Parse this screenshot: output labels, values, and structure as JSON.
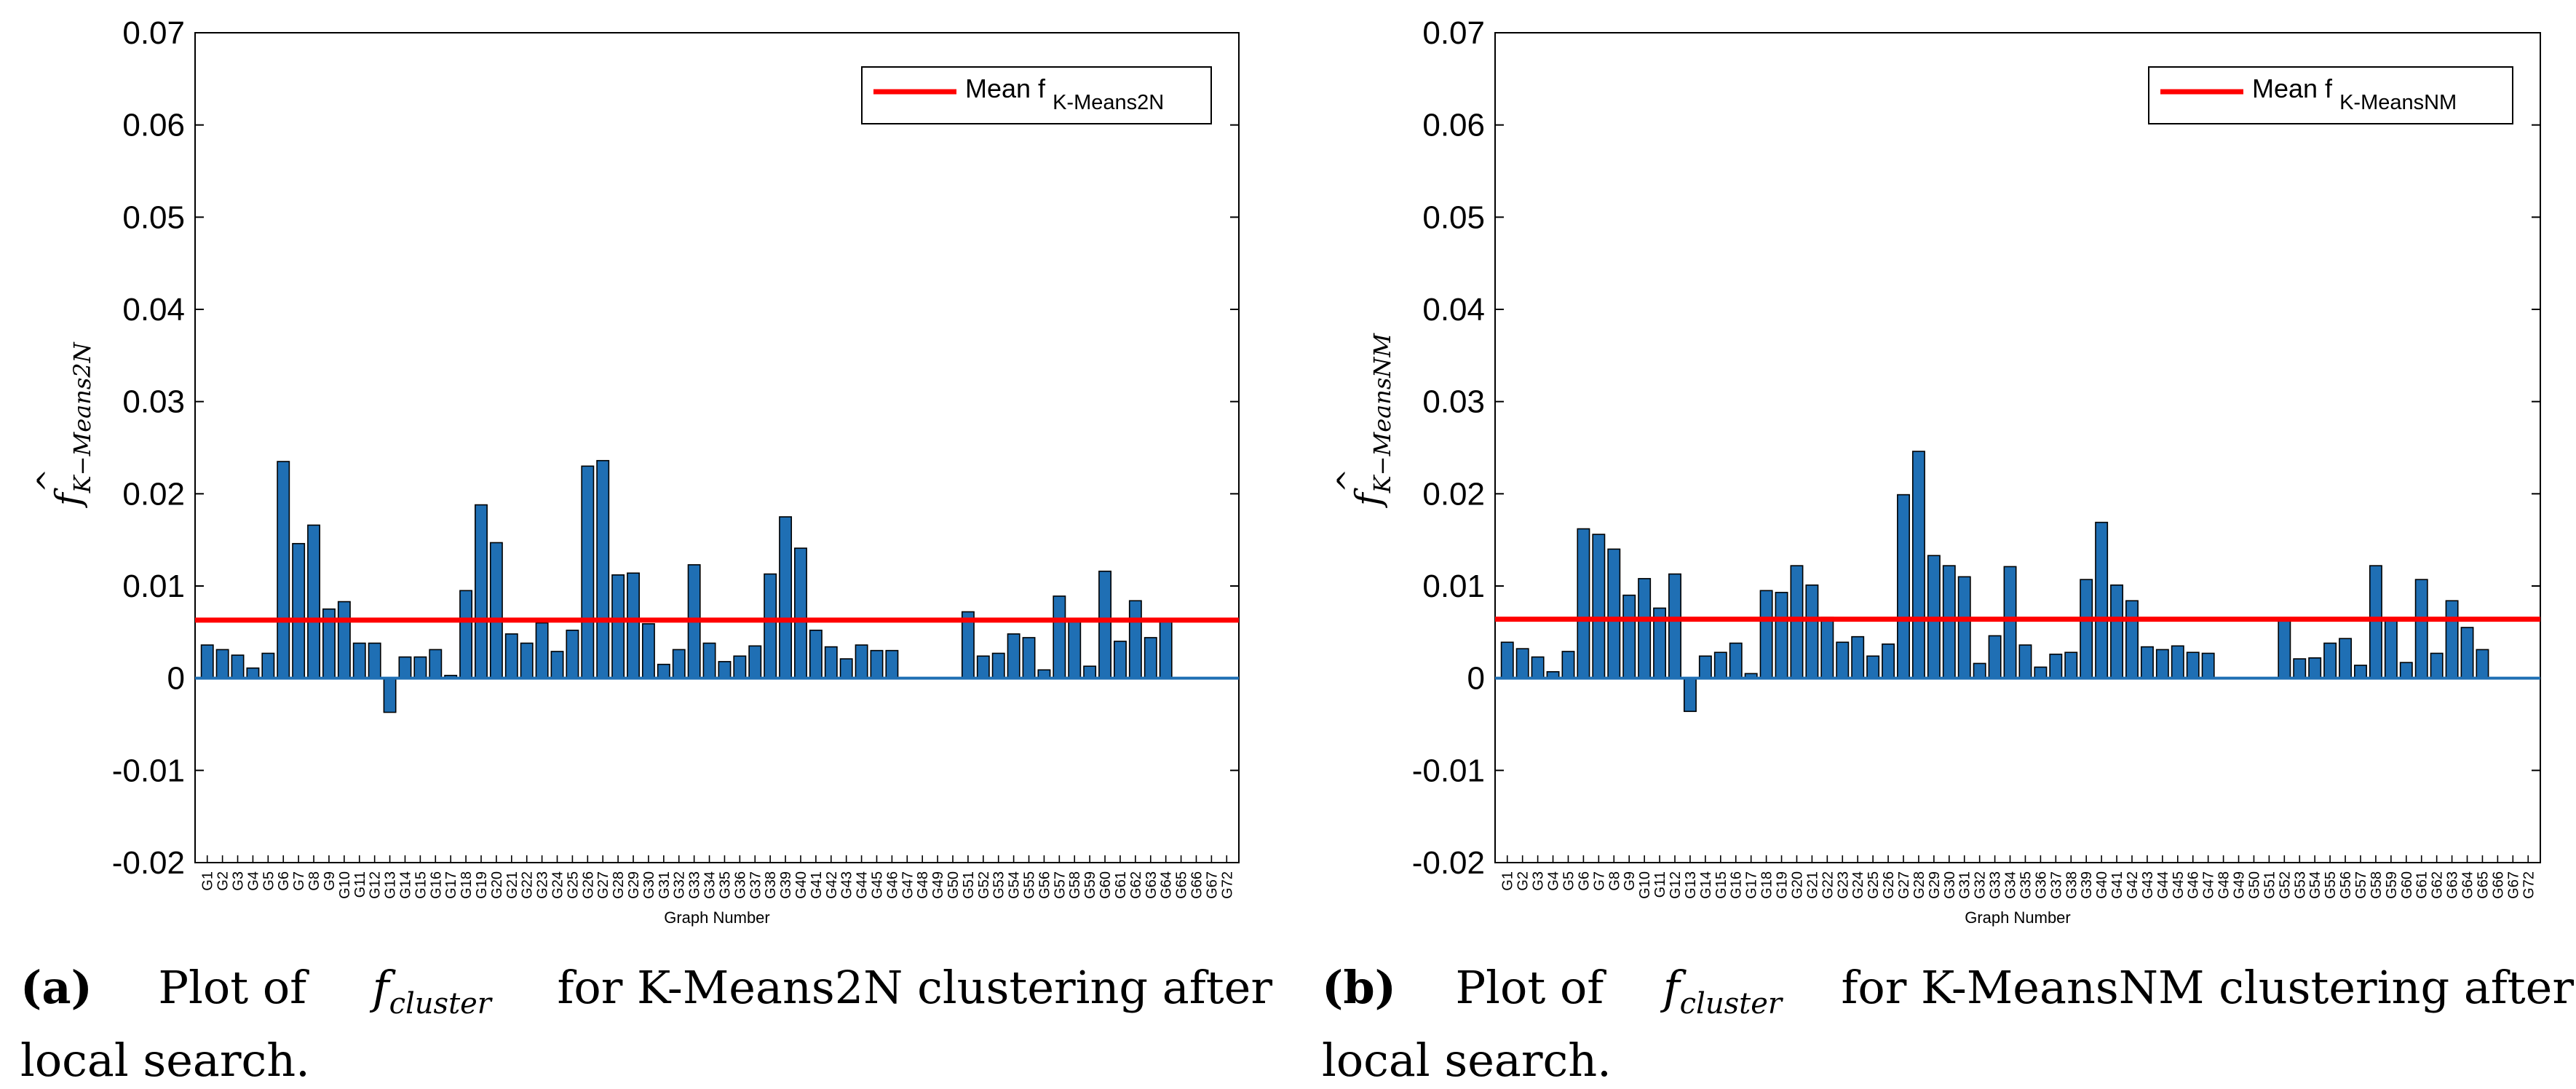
{
  "colors": {
    "bar": "#1f6fb4",
    "bar_edge": "#000000",
    "mean_line": "#ff0000",
    "zero_line": "#1f6fb4"
  },
  "chart_data": [
    {
      "type": "bar",
      "panel": "a",
      "xlabel": "Graph Number",
      "ylabel_main": "f",
      "ylabel_sub": "K−Means2N",
      "ylim": [
        -0.02,
        0.07
      ],
      "yticks": [
        -0.02,
        -0.01,
        0,
        0.01,
        0.02,
        0.03,
        0.04,
        0.05,
        0.06,
        0.07
      ],
      "ytick_labels": [
        "-0.02",
        "-0.01",
        "0",
        "0.01",
        "0.02",
        "0.03",
        "0.04",
        "0.05",
        "0.06",
        "0.07"
      ],
      "legend": {
        "label": "Mean f",
        "label_sub": "K-Means2N",
        "position": "top-right"
      },
      "mean_value": 0.0063,
      "categories": [
        "G1",
        "G2",
        "G3",
        "G4",
        "G5",
        "G6",
        "G7",
        "G8",
        "G9",
        "G10",
        "G11",
        "G12",
        "G13",
        "G14",
        "G15",
        "G16",
        "G17",
        "G18",
        "G19",
        "G20",
        "G21",
        "G22",
        "G23",
        "G24",
        "G25",
        "G26",
        "G27",
        "G28",
        "G29",
        "G30",
        "G31",
        "G32",
        "G33",
        "G34",
        "G35",
        "G36",
        "G37",
        "G38",
        "G39",
        "G40",
        "G41",
        "G42",
        "G43",
        "G44",
        "G45",
        "G46",
        "G47",
        "G48",
        "G49",
        "G50",
        "G51",
        "G52",
        "G53",
        "G54",
        "G55",
        "G56",
        "G57",
        "G58",
        "G59",
        "G60",
        "G61",
        "G62",
        "G63",
        "G64",
        "G65",
        "G66",
        "G67",
        "G72"
      ],
      "values": [
        0.0036,
        0.0031,
        0.0025,
        0.0011,
        0.0027,
        0.0235,
        0.0146,
        0.0166,
        0.0075,
        0.0083,
        0.0038,
        0.0038,
        -0.0037,
        0.0023,
        0.0023,
        0.0031,
        0.0003,
        0.0095,
        0.0188,
        0.0147,
        0.0048,
        0.0038,
        0.006,
        0.0029,
        0.0052,
        0.023,
        0.0236,
        0.0112,
        0.0114,
        0.0059,
        0.0015,
        0.0031,
        0.0123,
        0.0038,
        0.0018,
        0.0024,
        0.0035,
        0.0113,
        0.0175,
        0.0141,
        0.0052,
        0.0034,
        0.0021,
        0.0036,
        0.003,
        0.003,
        0,
        0,
        0,
        0,
        0.0072,
        0.0024,
        0.0027,
        0.0048,
        0.0044,
        0.0009,
        0.0089,
        0.0063,
        0.0013,
        0.0116,
        0.004,
        0.0084,
        0.0044,
        0.0063,
        0,
        0,
        0,
        0
      ]
    },
    {
      "type": "bar",
      "panel": "b",
      "xlabel": "Graph Number",
      "ylabel_main": "f",
      "ylabel_sub": "K−MeansNM",
      "ylim": [
        -0.02,
        0.07
      ],
      "yticks": [
        -0.02,
        -0.01,
        0,
        0.01,
        0.02,
        0.03,
        0.04,
        0.05,
        0.06,
        0.07
      ],
      "ytick_labels": [
        "-0.02",
        "-0.01",
        "0",
        "0.01",
        "0.02",
        "0.03",
        "0.04",
        "0.05",
        "0.06",
        "0.07"
      ],
      "legend": {
        "label": "Mean f",
        "label_sub": "K-MeansNM",
        "position": "top-right"
      },
      "mean_value": 0.0064,
      "categories": [
        "G1",
        "G2",
        "G3",
        "G4",
        "G5",
        "G6",
        "G7",
        "G8",
        "G9",
        "G10",
        "G11",
        "G12",
        "G13",
        "G14",
        "G15",
        "G16",
        "G17",
        "G18",
        "G19",
        "G20",
        "G21",
        "G22",
        "G23",
        "G24",
        "G25",
        "G26",
        "G27",
        "G28",
        "G29",
        "G30",
        "G31",
        "G32",
        "G33",
        "G34",
        "G35",
        "G36",
        "G37",
        "G38",
        "G39",
        "G40",
        "G41",
        "G42",
        "G43",
        "G44",
        "G45",
        "G46",
        "G47",
        "G48",
        "G49",
        "G50",
        "G51",
        "G52",
        "G53",
        "G54",
        "G55",
        "G56",
        "G57",
        "G58",
        "G59",
        "G60",
        "G61",
        "G62",
        "G63",
        "G64",
        "G65",
        "G66",
        "G67",
        "G72"
      ],
      "values": [
        0.0039,
        0.0032,
        0.0023,
        0.0007,
        0.0029,
        0.0162,
        0.0156,
        0.014,
        0.009,
        0.0108,
        0.0076,
        0.0113,
        -0.0036,
        0.0024,
        0.0028,
        0.0038,
        0.0005,
        0.0095,
        0.0093,
        0.0122,
        0.0101,
        0.0066,
        0.0039,
        0.0045,
        0.0024,
        0.0037,
        0.0199,
        0.0246,
        0.0133,
        0.0122,
        0.011,
        0.0016,
        0.0046,
        0.0121,
        0.0036,
        0.0012,
        0.0026,
        0.0028,
        0.0107,
        0.0169,
        0.0101,
        0.0084,
        0.0034,
        0.0031,
        0.0035,
        0.0028,
        0.0027,
        0,
        0,
        0,
        0,
        0.0065,
        0.0021,
        0.0022,
        0.0038,
        0.0043,
        0.0014,
        0.0122,
        0.0063,
        0.0017,
        0.0107,
        0.0027,
        0.0084,
        0.0055,
        0.0031,
        0,
        0,
        0
      ]
    }
  ],
  "captions": [
    {
      "tag": "(a)",
      "before": "Plot of",
      "symbol": "f",
      "symbol_sub": "cluster",
      "after": "for K-Means2N clustering after",
      "line2": "local search."
    },
    {
      "tag": "(b)",
      "before": "Plot of",
      "symbol": "f",
      "symbol_sub": "cluster",
      "after": "for K-MeansNM clustering after",
      "line2": "local search."
    }
  ]
}
